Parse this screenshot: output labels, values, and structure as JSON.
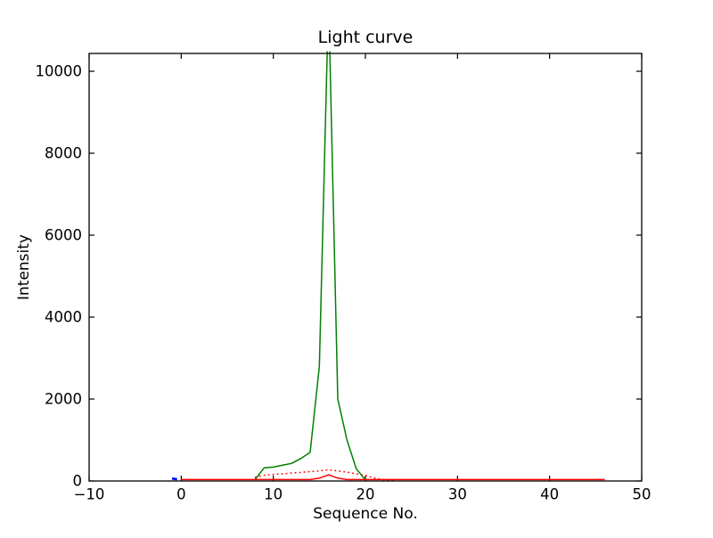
{
  "chart_data": {
    "type": "line",
    "title": "Light curve",
    "xlabel": "Sequence No.",
    "ylabel": "Intensity",
    "xlim": [
      -10,
      50
    ],
    "ylim": [
      0,
      10435
    ],
    "xticks": [
      -10,
      0,
      10,
      20,
      30,
      40,
      50
    ],
    "yticks": [
      0,
      2000,
      4000,
      6000,
      8000,
      10000
    ],
    "grid": false,
    "legend": false,
    "background_color": "#ffffff",
    "axes_color": "#000000",
    "series": [
      {
        "name": "blue-segment",
        "color": "#0000ff",
        "style": "solid",
        "width": 2.6,
        "points": [
          [
            -1,
            60
          ],
          [
            -0.45,
            42
          ]
        ]
      },
      {
        "name": "green-curve",
        "color": "#008000",
        "style": "solid",
        "width": 1.5,
        "points": [
          [
            8,
            30
          ],
          [
            9,
            320
          ],
          [
            10,
            340
          ],
          [
            11,
            385
          ],
          [
            12,
            430
          ],
          [
            13,
            550
          ],
          [
            14,
            700
          ],
          [
            15,
            2800
          ],
          [
            16,
            11800
          ],
          [
            17,
            2000
          ],
          [
            18,
            1000
          ],
          [
            19,
            300
          ],
          [
            20,
            30
          ]
        ]
      },
      {
        "name": "red-dotted-curve",
        "color": "#ff0000",
        "style": "dotted",
        "width": 1.5,
        "points": [
          [
            8,
            90
          ],
          [
            9,
            140
          ],
          [
            10,
            160
          ],
          [
            11,
            175
          ],
          [
            12,
            195
          ],
          [
            13,
            210
          ],
          [
            14,
            230
          ],
          [
            15,
            245
          ],
          [
            16,
            275
          ],
          [
            17,
            245
          ],
          [
            18,
            215
          ],
          [
            19,
            175
          ],
          [
            20,
            135
          ],
          [
            21,
            70
          ],
          [
            22,
            30
          ],
          [
            23,
            15
          ]
        ]
      },
      {
        "name": "red-solid-curve",
        "color": "#ff0000",
        "style": "solid",
        "width": 1.5,
        "points": [
          [
            0,
            35
          ],
          [
            5,
            35
          ],
          [
            10,
            35
          ],
          [
            14,
            35
          ],
          [
            15,
            70
          ],
          [
            16,
            150
          ],
          [
            17,
            70
          ],
          [
            18,
            35
          ],
          [
            25,
            35
          ],
          [
            35,
            35
          ],
          [
            46,
            35
          ]
        ]
      }
    ]
  }
}
